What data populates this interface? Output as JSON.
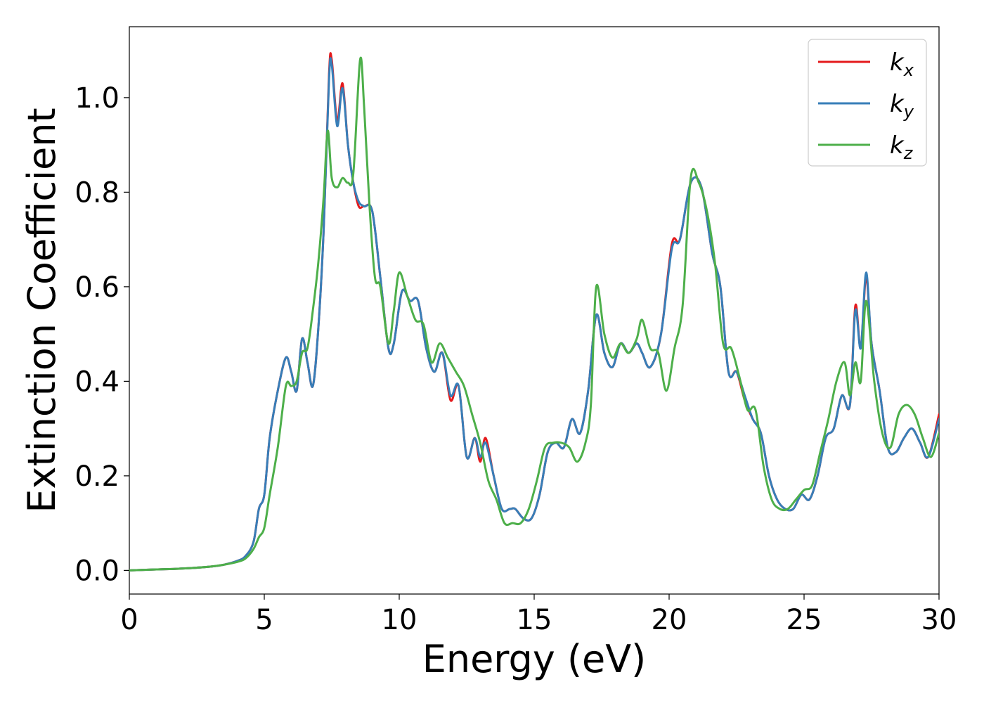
{
  "chart_data": {
    "type": "line",
    "title": "",
    "xlabel": "Energy (eV)",
    "ylabel": "Extinction Coefficient",
    "xlim": [
      0,
      30
    ],
    "ylim": [
      -0.05,
      1.15
    ],
    "xticks": [
      0,
      5,
      10,
      15,
      20,
      25,
      30
    ],
    "yticks": [
      0.0,
      0.2,
      0.4,
      0.6,
      0.8,
      1.0
    ],
    "grid": false,
    "legend_position": "top-right",
    "series": [
      {
        "name": "kx",
        "label_base": "k",
        "label_sub": "x",
        "color": "#e41a1c",
        "x": [
          0,
          1,
          2,
          3,
          3.5,
          4,
          4.3,
          4.6,
          4.8,
          5.0,
          5.2,
          5.5,
          5.8,
          6.0,
          6.2,
          6.4,
          6.6,
          6.8,
          7.0,
          7.2,
          7.4,
          7.5,
          7.7,
          7.9,
          8.1,
          8.3,
          8.5,
          8.7,
          9.0,
          9.3,
          9.6,
          9.8,
          10.1,
          10.4,
          10.7,
          11.0,
          11.3,
          11.6,
          11.9,
          12.2,
          12.5,
          12.8,
          13.0,
          13.2,
          13.5,
          13.8,
          14.1,
          14.3,
          14.6,
          14.9,
          15.2,
          15.5,
          15.8,
          16.1,
          16.4,
          16.7,
          17.0,
          17.3,
          17.6,
          17.9,
          18.2,
          18.5,
          18.8,
          19.0,
          19.3,
          19.7,
          20.1,
          20.4,
          20.8,
          21.2,
          21.6,
          21.9,
          22.2,
          22.5,
          22.8,
          23.1,
          23.4,
          23.7,
          24.0,
          24.3,
          24.6,
          24.9,
          25.2,
          25.5,
          25.8,
          26.1,
          26.4,
          26.7,
          26.9,
          27.1,
          27.3,
          27.5,
          27.8,
          28.1,
          28.4,
          28.7,
          29.0,
          29.3,
          29.6,
          30.0
        ],
        "values": [
          0.0,
          0.002,
          0.004,
          0.008,
          0.012,
          0.02,
          0.03,
          0.06,
          0.13,
          0.16,
          0.28,
          0.38,
          0.45,
          0.42,
          0.38,
          0.49,
          0.44,
          0.39,
          0.51,
          0.72,
          1.05,
          1.08,
          0.95,
          1.03,
          0.9,
          0.82,
          0.77,
          0.77,
          0.76,
          0.62,
          0.47,
          0.48,
          0.59,
          0.57,
          0.57,
          0.47,
          0.42,
          0.46,
          0.36,
          0.39,
          0.24,
          0.28,
          0.23,
          0.28,
          0.2,
          0.13,
          0.13,
          0.13,
          0.11,
          0.11,
          0.16,
          0.25,
          0.27,
          0.26,
          0.32,
          0.29,
          0.38,
          0.54,
          0.46,
          0.43,
          0.48,
          0.46,
          0.48,
          0.46,
          0.43,
          0.5,
          0.69,
          0.7,
          0.82,
          0.81,
          0.67,
          0.6,
          0.42,
          0.42,
          0.36,
          0.32,
          0.29,
          0.2,
          0.15,
          0.13,
          0.13,
          0.16,
          0.15,
          0.2,
          0.28,
          0.3,
          0.37,
          0.35,
          0.56,
          0.47,
          0.62,
          0.48,
          0.38,
          0.26,
          0.25,
          0.28,
          0.3,
          0.27,
          0.24,
          0.33
        ]
      },
      {
        "name": "ky",
        "label_base": "k",
        "label_sub": "y",
        "color": "#377eb8",
        "x": [
          0,
          1,
          2,
          3,
          3.5,
          4,
          4.3,
          4.6,
          4.8,
          5.0,
          5.2,
          5.5,
          5.8,
          6.0,
          6.2,
          6.4,
          6.6,
          6.8,
          7.0,
          7.2,
          7.4,
          7.5,
          7.7,
          7.9,
          8.1,
          8.3,
          8.5,
          8.7,
          9.0,
          9.3,
          9.6,
          9.8,
          10.1,
          10.4,
          10.7,
          11.0,
          11.3,
          11.6,
          11.9,
          12.2,
          12.5,
          12.8,
          13.0,
          13.2,
          13.5,
          13.8,
          14.1,
          14.3,
          14.6,
          14.9,
          15.2,
          15.5,
          15.8,
          16.1,
          16.4,
          16.7,
          17.0,
          17.3,
          17.6,
          17.9,
          18.2,
          18.5,
          18.8,
          19.0,
          19.3,
          19.7,
          20.1,
          20.4,
          20.8,
          21.2,
          21.6,
          21.9,
          22.2,
          22.5,
          22.8,
          23.1,
          23.4,
          23.7,
          24.0,
          24.3,
          24.6,
          24.9,
          25.2,
          25.5,
          25.8,
          26.1,
          26.4,
          26.7,
          26.9,
          27.1,
          27.3,
          27.5,
          27.8,
          28.1,
          28.4,
          28.7,
          29.0,
          29.3,
          29.6,
          30.0
        ],
        "values": [
          0.0,
          0.002,
          0.004,
          0.008,
          0.012,
          0.02,
          0.03,
          0.06,
          0.13,
          0.16,
          0.28,
          0.38,
          0.45,
          0.42,
          0.38,
          0.49,
          0.44,
          0.39,
          0.51,
          0.72,
          1.04,
          1.07,
          0.94,
          1.02,
          0.9,
          0.82,
          0.78,
          0.77,
          0.76,
          0.62,
          0.47,
          0.48,
          0.59,
          0.57,
          0.57,
          0.47,
          0.42,
          0.46,
          0.37,
          0.39,
          0.24,
          0.28,
          0.24,
          0.27,
          0.2,
          0.13,
          0.13,
          0.13,
          0.11,
          0.11,
          0.16,
          0.25,
          0.27,
          0.26,
          0.32,
          0.29,
          0.38,
          0.54,
          0.46,
          0.43,
          0.48,
          0.46,
          0.48,
          0.46,
          0.43,
          0.5,
          0.68,
          0.7,
          0.82,
          0.81,
          0.67,
          0.6,
          0.42,
          0.42,
          0.37,
          0.32,
          0.29,
          0.2,
          0.15,
          0.13,
          0.13,
          0.16,
          0.15,
          0.2,
          0.28,
          0.3,
          0.37,
          0.35,
          0.55,
          0.47,
          0.63,
          0.48,
          0.38,
          0.26,
          0.25,
          0.28,
          0.3,
          0.27,
          0.24,
          0.32
        ]
      },
      {
        "name": "kz",
        "label_base": "k",
        "label_sub": "z",
        "color": "#4daf4a",
        "x": [
          0,
          1,
          2,
          3,
          3.5,
          4,
          4.3,
          4.6,
          4.8,
          5.0,
          5.2,
          5.5,
          5.8,
          6.0,
          6.2,
          6.4,
          6.6,
          6.8,
          7.0,
          7.2,
          7.35,
          7.5,
          7.7,
          7.9,
          8.1,
          8.3,
          8.55,
          8.7,
          8.9,
          9.1,
          9.3,
          9.6,
          9.8,
          10.0,
          10.3,
          10.6,
          10.9,
          11.2,
          11.5,
          11.8,
          12.1,
          12.4,
          12.7,
          13.0,
          13.3,
          13.6,
          13.9,
          14.2,
          14.5,
          14.8,
          15.1,
          15.4,
          15.7,
          16.0,
          16.3,
          16.6,
          16.9,
          17.1,
          17.3,
          17.6,
          17.9,
          18.2,
          18.5,
          18.8,
          19.0,
          19.3,
          19.6,
          19.9,
          20.2,
          20.5,
          20.8,
          21.1,
          21.4,
          21.7,
          22.0,
          22.3,
          22.6,
          22.9,
          23.2,
          23.5,
          23.8,
          24.1,
          24.4,
          24.7,
          25.0,
          25.3,
          25.6,
          25.9,
          26.2,
          26.5,
          26.7,
          26.9,
          27.1,
          27.3,
          27.6,
          27.9,
          28.2,
          28.5,
          28.8,
          29.1,
          29.4,
          29.7,
          30.0
        ],
        "values": [
          0.0,
          0.002,
          0.004,
          0.008,
          0.012,
          0.018,
          0.025,
          0.045,
          0.07,
          0.09,
          0.16,
          0.26,
          0.39,
          0.39,
          0.4,
          0.46,
          0.47,
          0.55,
          0.65,
          0.79,
          0.93,
          0.83,
          0.81,
          0.83,
          0.82,
          0.84,
          1.08,
          0.98,
          0.77,
          0.62,
          0.6,
          0.48,
          0.55,
          0.63,
          0.58,
          0.53,
          0.52,
          0.44,
          0.48,
          0.45,
          0.42,
          0.39,
          0.33,
          0.27,
          0.19,
          0.15,
          0.1,
          0.1,
          0.1,
          0.13,
          0.19,
          0.26,
          0.27,
          0.27,
          0.26,
          0.23,
          0.27,
          0.35,
          0.6,
          0.5,
          0.45,
          0.48,
          0.46,
          0.49,
          0.53,
          0.47,
          0.46,
          0.38,
          0.47,
          0.56,
          0.83,
          0.82,
          0.76,
          0.65,
          0.48,
          0.47,
          0.41,
          0.34,
          0.34,
          0.22,
          0.15,
          0.13,
          0.13,
          0.15,
          0.17,
          0.18,
          0.25,
          0.32,
          0.4,
          0.44,
          0.37,
          0.44,
          0.4,
          0.57,
          0.4,
          0.29,
          0.26,
          0.33,
          0.35,
          0.33,
          0.28,
          0.24,
          0.29
        ]
      }
    ]
  }
}
